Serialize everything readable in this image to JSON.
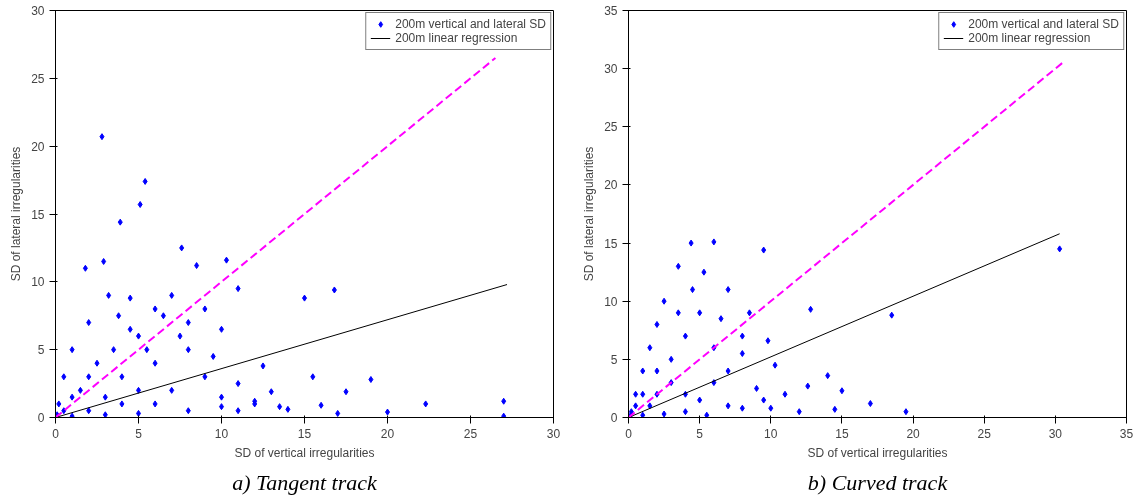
{
  "chart_data": [
    {
      "type": "scatter",
      "title": "a) Tangent track",
      "xlabel": "SD of vertical irregularities",
      "ylabel": "SD of lateral irregularities",
      "xlim": [
        0,
        30
      ],
      "ylim": [
        0,
        30
      ],
      "xticks": [
        0,
        5,
        10,
        15,
        20,
        25,
        30
      ],
      "yticks": [
        0,
        5,
        10,
        15,
        20,
        25,
        30
      ],
      "grid": false,
      "legend": "top right",
      "series": [
        {
          "type": "scatter",
          "name": "200m vertical and lateral SD",
          "color": "#0000ff",
          "marker": "diamond",
          "x": [
            2.8,
            5.4,
            5.1,
            3.9,
            7.6,
            10.3,
            2.9,
            1.8,
            8.5,
            11,
            15,
            16.8,
            19,
            22.3,
            27,
            27,
            17.5,
            13,
            15.5,
            12.5,
            10,
            9,
            7,
            6,
            4.5,
            3.2,
            2,
            1,
            0.5,
            0.2,
            0.1,
            1,
            3,
            5,
            8,
            10,
            12,
            14,
            16,
            17,
            20,
            1.5,
            2.5,
            3.5,
            4,
            5,
            6,
            7,
            8,
            9,
            10,
            11,
            6.5,
            8,
            2,
            3,
            4,
            5,
            6,
            1,
            0.5,
            2,
            4.5,
            3.8,
            5.5,
            7.5,
            9.5,
            12,
            13.5,
            11
          ],
          "values": [
            20.7,
            17.4,
            15.7,
            14.4,
            12.5,
            11.6,
            11.5,
            11,
            11.2,
            9.5,
            8.8,
            9.4,
            2.8,
            1,
            1.2,
            0.1,
            1.9,
            1.9,
            3,
            3.8,
            6.5,
            8,
            9,
            8,
            8.8,
            9,
            7,
            5,
            3,
            1,
            0.2,
            0.1,
            0.2,
            0.3,
            0.5,
            0.8,
            1.2,
            0.6,
            0.9,
            0.3,
            0.4,
            2,
            4,
            5,
            3,
            6,
            4,
            2,
            5,
            3,
            1.5,
            2.5,
            7.5,
            7,
            3,
            1.5,
            1,
            2,
            1,
            1.5,
            0.5,
            0.5,
            6.5,
            7.5,
            5,
            6,
            4.5,
            1,
            0.8,
            0.5
          ]
        },
        {
          "type": "line",
          "name": "200m linear regression",
          "color": "#000000",
          "line_style": "solid",
          "x": [
            0,
            27.2
          ],
          "values": [
            0,
            9.8
          ]
        },
        {
          "type": "line",
          "color": "#ff00ff",
          "line_style": "dashed",
          "x": [
            0,
            26.5
          ],
          "values": [
            0,
            26.5
          ]
        }
      ]
    },
    {
      "type": "scatter",
      "title": "b) Curved track",
      "xlabel": "SD of vertical irregularities",
      "ylabel": "SD of lateral irregularities",
      "xlim": [
        0,
        35
      ],
      "ylim": [
        0,
        35
      ],
      "xticks": [
        0,
        5,
        10,
        15,
        20,
        25,
        30,
        35
      ],
      "yticks": [
        0,
        5,
        10,
        15,
        20,
        25,
        30,
        35
      ],
      "grid": false,
      "legend": "top right",
      "series": [
        {
          "type": "scatter",
          "name": "200m vertical and lateral SD",
          "color": "#0000ff",
          "marker": "diamond",
          "x": [
            30.3,
            19.5,
            18.5,
            17,
            15,
            14,
            14.5,
            12.8,
            12.6,
            12,
            9.5,
            6,
            4.4,
            3.5,
            5.3,
            7,
            8.5,
            2.5,
            2,
            1.5,
            1,
            0.5,
            0.2,
            0.1,
            1,
            2.5,
            4,
            5.5,
            7,
            8,
            9.5,
            10.3,
            9.8,
            11,
            3,
            4,
            5,
            6,
            7,
            8,
            3,
            4,
            5,
            6,
            2,
            1.5,
            3.5,
            4.5,
            6.5,
            8,
            9,
            10,
            2,
            1,
            0.5
          ],
          "values": [
            14.5,
            0.5,
            8.8,
            1.2,
            2.3,
            3.6,
            0.7,
            9.3,
            2.7,
            0.5,
            14.4,
            15.1,
            15,
            13,
            12.5,
            11,
            9,
            10,
            8,
            6,
            4,
            2,
            0.5,
            0.1,
            0.2,
            0.3,
            0.5,
            0.2,
            1,
            0.8,
            1.5,
            4.5,
            6.6,
            2,
            5,
            7,
            9,
            6,
            4,
            5.5,
            3,
            2,
            1.5,
            3,
            2,
            1,
            9,
            11,
            8.5,
            7,
            2.5,
            0.8,
            4,
            2,
            1
          ]
        },
        {
          "type": "line",
          "name": "200m linear regression",
          "color": "#000000",
          "line_style": "solid",
          "x": [
            0,
            30.3
          ],
          "values": [
            0,
            15.8
          ]
        },
        {
          "type": "line",
          "color": "#ff00ff",
          "line_style": "dashed",
          "x": [
            0,
            30.5
          ],
          "values": [
            0,
            30.5
          ]
        }
      ]
    }
  ]
}
